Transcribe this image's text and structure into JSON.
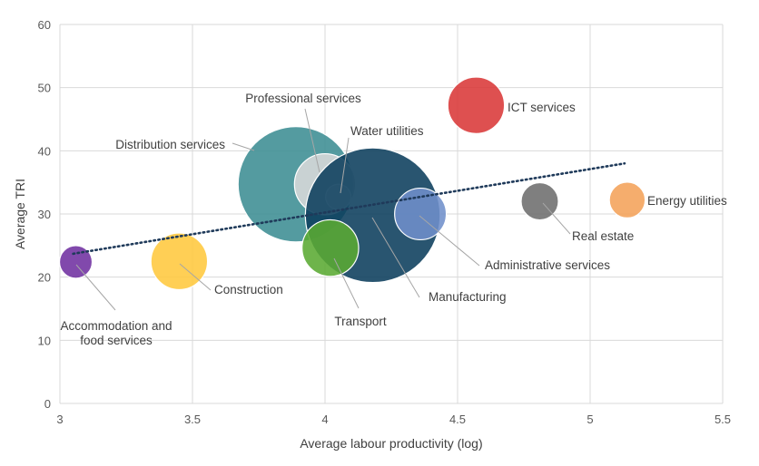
{
  "chart_data": {
    "type": "scatter",
    "xlabel": "Average labour productivity (log)",
    "ylabel": "Average TRI",
    "xlim": [
      3,
      5.5
    ],
    "ylim": [
      0,
      60
    ],
    "xticks": [
      3,
      3.5,
      4,
      4.5,
      5,
      5.5
    ],
    "yticks": [
      0,
      10,
      20,
      30,
      40,
      50,
      60
    ],
    "xtick_labels": [
      "3",
      "3.5",
      "4",
      "4.5",
      "5",
      "5.5"
    ],
    "ytick_labels": [
      "0",
      "10",
      "20",
      "30",
      "40",
      "50",
      "60"
    ],
    "grid": true,
    "trendline": {
      "style": "dotted",
      "color": "#1F3A5A",
      "x": [
        3.05,
        5.13
      ],
      "y": [
        23.7,
        38.0
      ]
    },
    "points": [
      {
        "label_lines": [
          "Accommodation and",
          "food services"
        ],
        "x": 3.06,
        "y": 22.4,
        "size": 1.0,
        "color": "#7030A0"
      },
      {
        "label_lines": [
          "Construction"
        ],
        "x": 3.45,
        "y": 22.5,
        "size": 3.0,
        "color": "#FFC83D"
      },
      {
        "label_lines": [
          "Distribution services"
        ],
        "x": 3.89,
        "y": 34.7,
        "size": 12.5,
        "color": "#3C8D93"
      },
      {
        "label_lines": [
          "Professional services"
        ],
        "x": 4.0,
        "y": 34.7,
        "size": 3.5,
        "color": "#D9D9D9"
      },
      {
        "label_lines": [
          "Water utilities"
        ],
        "x": 4.05,
        "y": 32.7,
        "size": 0.6,
        "color": "#E6E6E6"
      },
      {
        "label_lines": [
          "Manufacturing"
        ],
        "x": 4.18,
        "y": 29.8,
        "size": 17.0,
        "color": "#0B3D5C"
      },
      {
        "label_lines": [
          "Transport"
        ],
        "x": 4.02,
        "y": 24.6,
        "size": 3.0,
        "color": "#5AAA32"
      },
      {
        "label_lines": [
          "Administrative services"
        ],
        "x": 4.36,
        "y": 30.0,
        "size": 2.5,
        "color": "#6F8FCB"
      },
      {
        "label_lines": [
          "ICT services"
        ],
        "x": 4.57,
        "y": 47.2,
        "size": 3.0,
        "color": "#D93838"
      },
      {
        "label_lines": [
          "Real estate"
        ],
        "x": 4.81,
        "y": 32.0,
        "size": 1.3,
        "color": "#6D6D6D"
      },
      {
        "label_lines": [
          "Energy utilities"
        ],
        "x": 5.14,
        "y": 32.2,
        "size": 1.2,
        "color": "#F4A259"
      }
    ]
  }
}
